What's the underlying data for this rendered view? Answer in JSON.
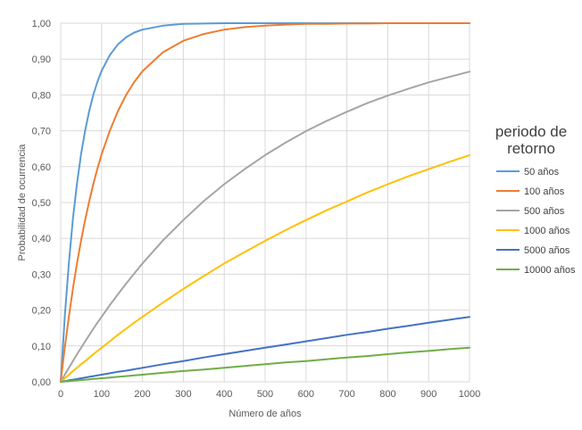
{
  "chart_data": {
    "type": "line",
    "xlabel": "Número de años",
    "ylabel": "Probabilidad de ocurrencia",
    "xlim": [
      0,
      1000
    ],
    "ylim": [
      0,
      1
    ],
    "x_ticks": [
      "0",
      "100",
      "200",
      "300",
      "400",
      "500",
      "600",
      "700",
      "800",
      "900",
      "1000"
    ],
    "y_ticks": [
      "0,00",
      "0,10",
      "0,20",
      "0,30",
      "0,40",
      "0,50",
      "0,60",
      "0,70",
      "0,80",
      "0,90",
      "1,00"
    ],
    "grid": true,
    "legend": {
      "title_lines": [
        "periodo de",
        "retorno"
      ],
      "placement": "right"
    },
    "x": [
      0,
      10,
      20,
      30,
      40,
      50,
      60,
      70,
      80,
      90,
      100,
      120,
      140,
      160,
      180,
      200,
      250,
      300,
      350,
      400,
      450,
      500,
      550,
      600,
      650,
      700,
      750,
      800,
      850,
      900,
      950,
      1000
    ],
    "series": [
      {
        "name": "50 años",
        "color": "#5B9BD5",
        "values": [
          0,
          0.183,
          0.332,
          0.455,
          0.554,
          0.636,
          0.702,
          0.757,
          0.801,
          0.837,
          0.867,
          0.911,
          0.941,
          0.961,
          0.974,
          0.982,
          0.993,
          0.998,
          0.999,
          1.0,
          1.0,
          1.0,
          1.0,
          1.0,
          1.0,
          1.0,
          1.0,
          1.0,
          1.0,
          1.0,
          1.0,
          1.0
        ]
      },
      {
        "name": "100 años",
        "color": "#ED7D31",
        "values": [
          0,
          0.096,
          0.182,
          0.26,
          0.331,
          0.395,
          0.453,
          0.505,
          0.552,
          0.595,
          0.634,
          0.7,
          0.755,
          0.8,
          0.836,
          0.866,
          0.919,
          0.951,
          0.97,
          0.982,
          0.989,
          0.993,
          0.996,
          0.998,
          0.998,
          0.999,
          0.999,
          1.0,
          1.0,
          1.0,
          1.0,
          1.0
        ]
      },
      {
        "name": "500 años",
        "color": "#A5A5A5",
        "values": [
          0,
          0.02,
          0.039,
          0.058,
          0.077,
          0.095,
          0.113,
          0.131,
          0.148,
          0.165,
          0.181,
          0.214,
          0.244,
          0.274,
          0.302,
          0.33,
          0.394,
          0.451,
          0.504,
          0.551,
          0.593,
          0.632,
          0.667,
          0.699,
          0.727,
          0.753,
          0.777,
          0.798,
          0.817,
          0.835,
          0.85,
          0.865
        ]
      },
      {
        "name": "1000 años",
        "color": "#FFC000",
        "values": [
          0,
          0.01,
          0.02,
          0.03,
          0.039,
          0.049,
          0.058,
          0.068,
          0.077,
          0.086,
          0.095,
          0.113,
          0.131,
          0.148,
          0.165,
          0.181,
          0.221,
          0.259,
          0.295,
          0.33,
          0.362,
          0.393,
          0.423,
          0.451,
          0.478,
          0.503,
          0.528,
          0.551,
          0.573,
          0.593,
          0.613,
          0.632
        ]
      },
      {
        "name": "5000 años",
        "color": "#4472C4",
        "values": [
          0,
          0.002,
          0.004,
          0.006,
          0.008,
          0.01,
          0.012,
          0.014,
          0.016,
          0.018,
          0.02,
          0.024,
          0.028,
          0.031,
          0.035,
          0.039,
          0.049,
          0.058,
          0.068,
          0.077,
          0.086,
          0.095,
          0.104,
          0.113,
          0.122,
          0.131,
          0.139,
          0.148,
          0.156,
          0.165,
          0.173,
          0.181
        ]
      },
      {
        "name": "10000 años",
        "color": "#70AD47",
        "values": [
          0,
          0.001,
          0.002,
          0.003,
          0.004,
          0.005,
          0.006,
          0.007,
          0.008,
          0.009,
          0.01,
          0.012,
          0.014,
          0.016,
          0.018,
          0.02,
          0.025,
          0.03,
          0.034,
          0.039,
          0.044,
          0.049,
          0.054,
          0.058,
          0.063,
          0.068,
          0.072,
          0.077,
          0.082,
          0.086,
          0.091,
          0.095
        ]
      }
    ]
  }
}
